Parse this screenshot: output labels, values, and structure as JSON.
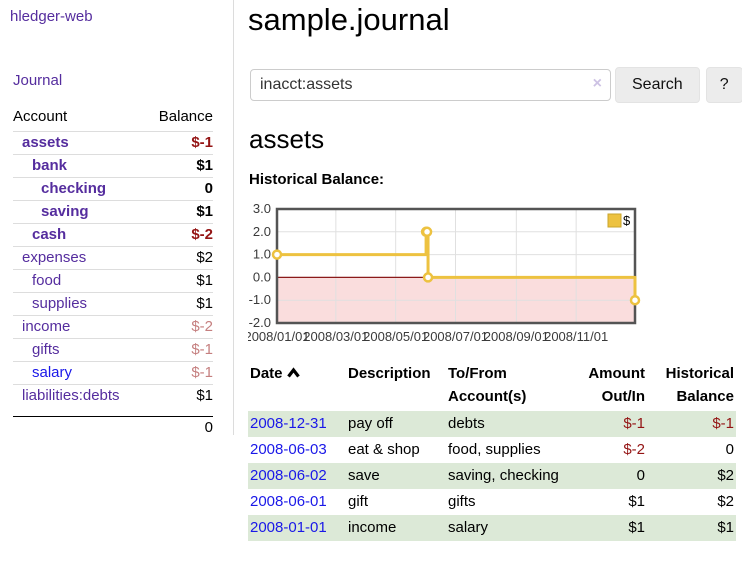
{
  "app": {
    "brand": "hledger-web",
    "journal_link": "Journal"
  },
  "sidebar": {
    "accounts_header": {
      "account": "Account",
      "balance": "Balance"
    },
    "accounts": [
      {
        "name": "assets",
        "balance": "$-1",
        "indent": 1,
        "bold": true,
        "name_style": "purple",
        "balance_style": "negative"
      },
      {
        "name": "bank",
        "balance": "$1",
        "indent": 2,
        "bold": true,
        "name_style": "purple",
        "balance_style": "normal"
      },
      {
        "name": "checking",
        "balance": "0",
        "indent": 3,
        "bold": true,
        "name_style": "purple",
        "balance_style": "normal"
      },
      {
        "name": "saving",
        "balance": "$1",
        "indent": 3,
        "bold": true,
        "name_style": "purple",
        "balance_style": "normal"
      },
      {
        "name": "cash",
        "balance": "$-2",
        "indent": 2,
        "bold": true,
        "name_style": "purple",
        "balance_style": "negative"
      },
      {
        "name": "expenses",
        "balance": "$2",
        "indent": 1,
        "bold": false,
        "name_style": "purple",
        "balance_style": "normal"
      },
      {
        "name": "food",
        "balance": "$1",
        "indent": 2,
        "bold": false,
        "name_style": "purple",
        "balance_style": "normal"
      },
      {
        "name": "supplies",
        "balance": "$1",
        "indent": 2,
        "bold": false,
        "name_style": "purple",
        "balance_style": "normal"
      },
      {
        "name": "income",
        "balance": "$-2",
        "indent": 1,
        "bold": false,
        "name_style": "purple",
        "balance_style": "negative-faded"
      },
      {
        "name": "gifts",
        "balance": "$-1",
        "indent": 2,
        "bold": false,
        "name_style": "purple",
        "balance_style": "negative-faded"
      },
      {
        "name": "salary",
        "balance": "$-1",
        "indent": 2,
        "bold": false,
        "name_style": "blue",
        "balance_style": "negative-faded"
      },
      {
        "name": "liabilities:debts",
        "balance": "$1",
        "indent": 1,
        "bold": false,
        "name_style": "purple",
        "balance_style": "normal"
      }
    ],
    "total": "0"
  },
  "main": {
    "title": "sample.journal",
    "search": {
      "value": "inacct:assets",
      "clear_label": "×",
      "search_button": "Search",
      "help_button": "?"
    },
    "account_heading": "assets",
    "chart_label": "Historical Balance:"
  },
  "chart_data": {
    "type": "line",
    "title": "Historical Balance",
    "legend": [
      {
        "label": "$",
        "color": "#edc240"
      }
    ],
    "legend_position": "top-right",
    "series": [
      {
        "name": "$",
        "steps": true,
        "color": "#edc240",
        "x_dates": [
          "2008-01-01",
          "2008-06-01",
          "2008-06-02",
          "2008-06-03",
          "2008-12-31"
        ],
        "x_days": [
          0,
          152,
          153,
          154,
          365
        ],
        "values": [
          1,
          2,
          2,
          0,
          -1
        ]
      }
    ],
    "ylim": [
      -2,
      3
    ],
    "ytick_values": [
      3,
      2,
      1,
      0,
      -1,
      -2
    ],
    "ytick_labels": [
      "3.0",
      "2.0",
      "1.0",
      "0.0",
      "-1.0",
      "-2.0"
    ],
    "xtick_days": [
      0,
      60,
      121,
      182,
      244,
      305
    ],
    "xtick_labels": [
      "2008/01/01",
      "2008/03/01",
      "2008/05/01",
      "2008/07/01",
      "2008/09/01",
      "2008/11/01"
    ],
    "x_range_days": [
      0,
      365
    ],
    "grid": true,
    "grid_color": "#e0e0e0",
    "border_color": "#545454",
    "negative_region_color": "#fadddd",
    "zero_line_color": "#8b1a1a"
  },
  "register": {
    "headers": {
      "date": "Date",
      "sort_icon": "caret-up",
      "description": "Description",
      "tofrom": "To/From Account(s)",
      "amount": "Amount Out/In",
      "balance": "Historical Balance"
    },
    "rows": [
      {
        "date": "2008-12-31",
        "description": "pay off",
        "accounts": "debts",
        "amount": "$-1",
        "balance": "$-1",
        "amount_style": "negative",
        "balance_style": "negative",
        "shaded": true
      },
      {
        "date": "2008-06-03",
        "description": "eat & shop",
        "accounts": "food, supplies",
        "amount": "$-2",
        "balance": "0",
        "amount_style": "negative",
        "balance_style": "normal",
        "shaded": false
      },
      {
        "date": "2008-06-02",
        "description": "save",
        "accounts": "saving, checking",
        "amount": "0",
        "balance": "$2",
        "amount_style": "normal",
        "balance_style": "normal",
        "shaded": true
      },
      {
        "date": "2008-06-01",
        "description": "gift",
        "accounts": "gifts",
        "amount": "$1",
        "balance": "$2",
        "amount_style": "normal",
        "balance_style": "normal",
        "shaded": false
      },
      {
        "date": "2008-01-01",
        "description": "income",
        "accounts": "salary",
        "amount": "$1",
        "balance": "$1",
        "amount_style": "normal",
        "balance_style": "normal",
        "shaded": true
      }
    ]
  },
  "colors": {
    "link_purple": "#552d9e",
    "link_blue": "#1a18e8",
    "negative": "#941414",
    "negative_faded": "#c57f7f",
    "row_green": "#dce9d7",
    "chart_line": "#edc240"
  }
}
